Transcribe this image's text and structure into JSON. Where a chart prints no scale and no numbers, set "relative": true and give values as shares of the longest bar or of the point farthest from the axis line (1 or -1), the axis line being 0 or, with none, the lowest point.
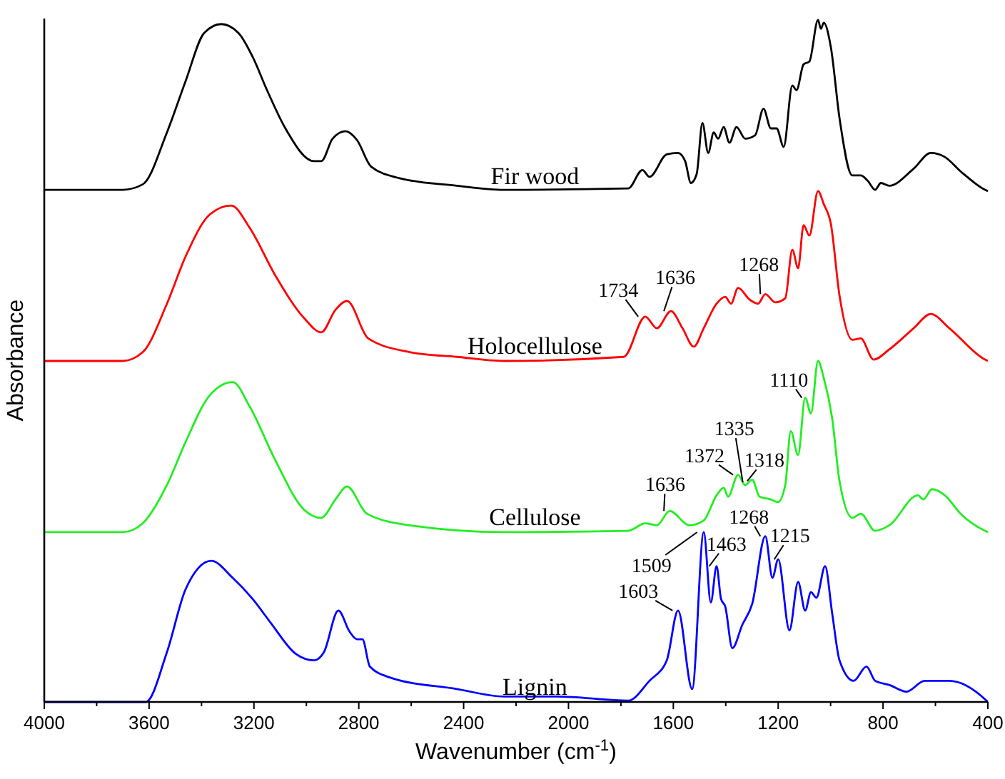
{
  "chart_data": {
    "type": "line",
    "relative": true,
    "xlabel": "Wavenumber (cm$^{-1}$)",
    "ylabel": "Absorbance",
    "grid": false,
    "marker": "none",
    "line_style": "solid",
    "tick_labels": "x",
    "xlim": [
      4000,
      400
    ],
    "xticks": [
      4000,
      {
        "value": 3800,
        "label": null
      },
      3600,
      {
        "value": 3400,
        "label": null
      },
      3200,
      {
        "value": 3000,
        "label": null
      },
      2800,
      {
        "value": 2600,
        "label": null
      },
      2400,
      {
        "value": 2200,
        "label": null
      },
      2000,
      {
        "value": 1800,
        "label": null
      },
      1600,
      {
        "value": 1400,
        "label": null
      },
      1200,
      {
        "value": 1000,
        "label": null
      },
      800,
      {
        "value": 600,
        "label": null
      },
      400
    ],
    "series": [
      {
        "name": "Fir wood",
        "color": "#000000",
        "x": [
          4000,
          3700,
          3624,
          3532,
          3461,
          3390,
          3325,
          3259,
          3205,
          3150,
          3080,
          2971,
          2943,
          2900,
          2851,
          2807,
          2753,
          2644,
          2426,
          2246,
          1772,
          1718,
          1691,
          1625,
          1582,
          1555,
          1533,
          1511,
          1489,
          1467,
          1446,
          1429,
          1408,
          1386,
          1359,
          1326,
          1288,
          1256,
          1228,
          1206,
          1179,
          1146,
          1130,
          1103,
          1081,
          1048,
          1037,
          1026,
          999,
          966,
          917,
          885,
          858,
          830,
          808,
          776,
          683,
          618,
          564,
          504,
          411,
          400
        ],
        "values": [
          0.751,
          0.751,
          0.759,
          0.835,
          0.91,
          0.981,
          0.994,
          0.981,
          0.946,
          0.897,
          0.841,
          0.793,
          0.793,
          0.826,
          0.837,
          0.824,
          0.785,
          0.768,
          0.757,
          0.751,
          0.753,
          0.78,
          0.77,
          0.803,
          0.805,
          0.793,
          0.761,
          0.774,
          0.849,
          0.805,
          0.835,
          0.826,
          0.843,
          0.82,
          0.843,
          0.826,
          0.831,
          0.87,
          0.841,
          0.841,
          0.814,
          0.904,
          0.897,
          0.935,
          0.939,
          1.0,
          0.987,
          0.996,
          0.96,
          0.856,
          0.772,
          0.772,
          0.764,
          0.751,
          0.761,
          0.757,
          0.782,
          0.805,
          0.799,
          0.778,
          0.751,
          0.749
        ]
      },
      {
        "name": "Holocellulose",
        "color": "#ff0000",
        "x": [
          4000,
          3700,
          3624,
          3532,
          3461,
          3368,
          3287,
          3216,
          3118,
          3009,
          2943,
          2889,
          2845,
          2764,
          2606,
          2426,
          2246,
          1789,
          1707,
          1663,
          1609,
          1565,
          1522,
          1484,
          1435,
          1402,
          1380,
          1353,
          1309,
          1277,
          1249,
          1211,
          1173,
          1146,
          1124,
          1103,
          1081,
          1048,
          1026,
          999,
          966,
          917,
          885,
          836,
          776,
          683,
          618,
          547,
          411,
          400
        ],
        "values": [
          0.5,
          0.5,
          0.513,
          0.584,
          0.653,
          0.715,
          0.728,
          0.695,
          0.625,
          0.563,
          0.542,
          0.575,
          0.588,
          0.533,
          0.513,
          0.506,
          0.5,
          0.506,
          0.565,
          0.548,
          0.573,
          0.548,
          0.521,
          0.548,
          0.584,
          0.594,
          0.584,
          0.607,
          0.59,
          0.584,
          0.598,
          0.586,
          0.592,
          0.663,
          0.636,
          0.699,
          0.684,
          0.749,
          0.73,
          0.701,
          0.596,
          0.531,
          0.533,
          0.502,
          0.517,
          0.548,
          0.569,
          0.548,
          0.502,
          0.5
        ]
      },
      {
        "name": "Cellulose",
        "color": "#22ee22",
        "x": [
          4000,
          3700,
          3624,
          3532,
          3461,
          3368,
          3281,
          3216,
          3118,
          3009,
          2943,
          2889,
          2845,
          2769,
          2606,
          2246,
          1772,
          1707,
          1663,
          1614,
          1538,
          1484,
          1435,
          1408,
          1391,
          1353,
          1326,
          1299,
          1271,
          1228,
          1201,
          1173,
          1152,
          1124,
          1097,
          1075,
          1048,
          1026,
          994,
          966,
          917,
          885,
          830,
          776,
          667,
          646,
          613,
          564,
          504,
          411,
          400
        ],
        "values": [
          0.249,
          0.249,
          0.262,
          0.318,
          0.381,
          0.45,
          0.469,
          0.433,
          0.354,
          0.282,
          0.27,
          0.297,
          0.316,
          0.276,
          0.259,
          0.249,
          0.251,
          0.262,
          0.259,
          0.28,
          0.259,
          0.266,
          0.303,
          0.314,
          0.301,
          0.333,
          0.318,
          0.326,
          0.301,
          0.297,
          0.293,
          0.318,
          0.397,
          0.362,
          0.446,
          0.423,
          0.5,
          0.475,
          0.416,
          0.324,
          0.27,
          0.276,
          0.251,
          0.259,
          0.303,
          0.297,
          0.312,
          0.303,
          0.276,
          0.251,
          0.249
        ]
      },
      {
        "name": "Lignin",
        "color": "#0000ff",
        "x": [
          4000,
          3613,
          3532,
          3461,
          3363,
          3281,
          3205,
          3134,
          3042,
          2971,
          2933,
          2878,
          2835,
          2807,
          2786,
          2758,
          2682,
          2426,
          2246,
          2046,
          1772,
          1691,
          1625,
          1582,
          1528,
          1484,
          1457,
          1435,
          1418,
          1402,
          1375,
          1337,
          1299,
          1249,
          1222,
          1200,
          1157,
          1124,
          1097,
          1075,
          1054,
          1021,
          994,
          966,
          912,
          863,
          830,
          776,
          711,
          641,
          547,
          411,
          400
        ],
        "values": [
          0,
          0,
          0.073,
          0.165,
          0.207,
          0.182,
          0.151,
          0.115,
          0.071,
          0.061,
          0.073,
          0.134,
          0.103,
          0.092,
          0.092,
          0.052,
          0.036,
          0.019,
          0.008,
          0.008,
          0.002,
          0.031,
          0.061,
          0.134,
          0.019,
          0.249,
          0.146,
          0.199,
          0.151,
          0.14,
          0.079,
          0.113,
          0.144,
          0.243,
          0.182,
          0.209,
          0.105,
          0.176,
          0.134,
          0.161,
          0.153,
          0.199,
          0.13,
          0.061,
          0.031,
          0.052,
          0.031,
          0.025,
          0.015,
          0.031,
          0.031,
          0.004,
          0
        ]
      }
    ],
    "annotations": [
      {
        "text": "1734",
        "x": 1734,
        "y": 0.565
      },
      {
        "text": "1636",
        "x": 1636,
        "y": 0.573
      },
      {
        "text": "1268",
        "x": 1268,
        "y": 0.598
      },
      {
        "text": "1110",
        "x": 1110,
        "y": 0.446
      },
      {
        "text": "1372",
        "x": 1372,
        "y": 0.333
      },
      {
        "text": "1335",
        "x": 1335,
        "y": 0.322
      },
      {
        "text": "1318",
        "x": 1318,
        "y": 0.324
      },
      {
        "text": "1636",
        "x": 1636,
        "y": 0.28
      },
      {
        "text": "1509",
        "x": 1509,
        "y": 0.249
      },
      {
        "text": "1463",
        "x": 1463,
        "y": 0.199
      },
      {
        "text": "1603",
        "x": 1603,
        "y": 0.134
      },
      {
        "text": "1268",
        "x": 1268,
        "y": 0.243
      },
      {
        "text": "1215",
        "x": 1215,
        "y": 0.209
      }
    ]
  }
}
